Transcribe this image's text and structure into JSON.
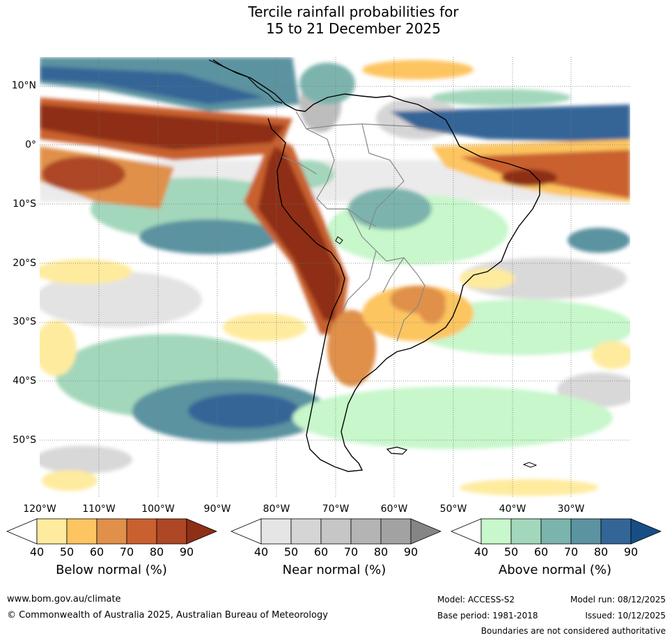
{
  "title": {
    "line1": "Tercile rainfall probabilities for",
    "line2": "15 to 21 December 2025"
  },
  "map": {
    "lat_labels": [
      "10°N",
      "0°",
      "10°S",
      "20°S",
      "30°S",
      "40°S",
      "50°S"
    ],
    "lon_labels": [
      "120°W",
      "110°W",
      "100°W",
      "90°W",
      "80°W",
      "70°W",
      "60°W",
      "50°W",
      "40°W",
      "30°W"
    ]
  },
  "colorbars": {
    "below": {
      "label": "Below normal (%)",
      "ticks": [
        "40",
        "50",
        "60",
        "70",
        "80",
        "90"
      ],
      "colors": [
        "#ffffff",
        "#feeb9e",
        "#fdc561",
        "#e0904a",
        "#c9602f",
        "#ad4726",
        "#8e2f17"
      ]
    },
    "near": {
      "label": "Near normal (%)",
      "ticks": [
        "40",
        "50",
        "60",
        "70",
        "80",
        "90"
      ],
      "colors": [
        "#ffffff",
        "#e5e5e5",
        "#d5d5d5",
        "#c6c6c6",
        "#b4b4b4",
        "#a2a2a2",
        "#858585"
      ]
    },
    "above": {
      "label": "Above normal (%)",
      "ticks": [
        "40",
        "50",
        "60",
        "70",
        "80",
        "90"
      ],
      "colors": [
        "#ffffff",
        "#c7f7cb",
        "#a3d7bb",
        "#7bb4ad",
        "#5b93a0",
        "#346597",
        "#174e86"
      ]
    }
  },
  "footer": {
    "url": "www.bom.gov.au/climate",
    "copyright": "© Commonwealth of Australia 2025, Australian Bureau of Meteorology",
    "model": "Model: ACCESS-S2",
    "model_run": "Model run: 08/12/2025",
    "base_period": "Base period: 1981-2018",
    "issued": "Issued: 10/12/2025",
    "disclaimer": "Boundaries are not considered authoritative"
  }
}
